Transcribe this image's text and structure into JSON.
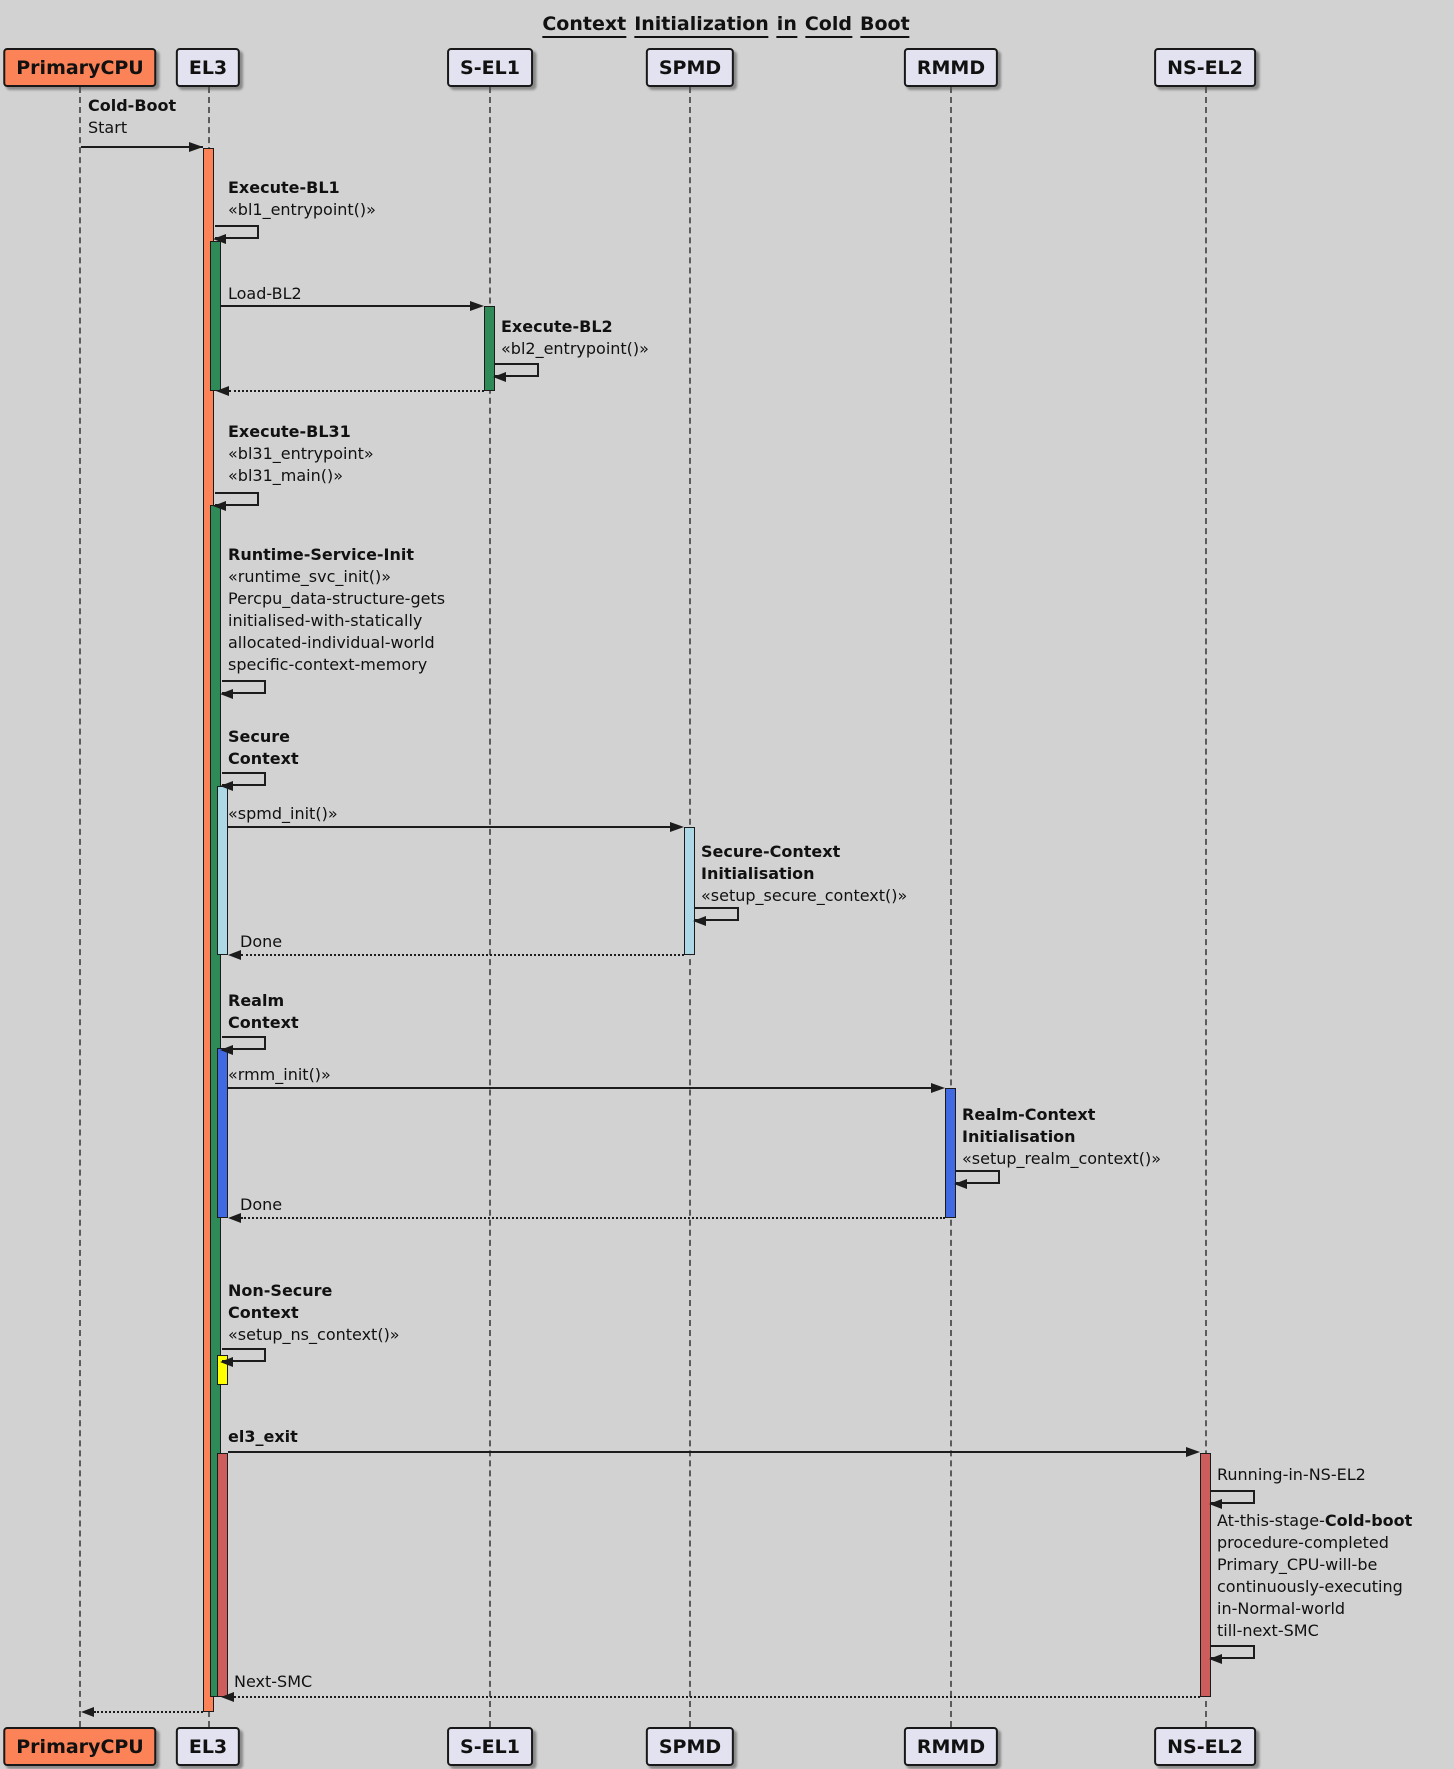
{
  "title": "Context Initialization in Cold Boot",
  "participants": [
    {
      "label": "PrimaryCPU"
    },
    {
      "label": "EL3"
    },
    {
      "label": "S-EL1"
    },
    {
      "label": "SPMD"
    },
    {
      "label": "RMMD"
    },
    {
      "label": "NS-EL2"
    }
  ],
  "messages": {
    "cold_boot": {
      "name": "Cold-Boot",
      "detail": "Start"
    },
    "execute_bl1": {
      "name": "Execute-BL1",
      "stereotype": "«bl1_entrypoint()»"
    },
    "load_bl2": {
      "name": "Load-BL2"
    },
    "execute_bl2": {
      "name": "Execute-BL2",
      "stereotype": "«bl2_entrypoint()»"
    },
    "execute_bl31": {
      "name": "Execute-BL31",
      "stereotype1": "«bl31_entrypoint»",
      "stereotype2": "«bl31_main()»"
    },
    "runtime_service_init": {
      "name": "Runtime-Service-Init",
      "stereotype": "«runtime_svc_init()»",
      "description": [
        "Percpu_data-structure-gets",
        "initialised-with-statically",
        "allocated-individual-world",
        "specific-context-memory"
      ]
    },
    "secure_context": {
      "name1": "Secure",
      "name2": "Context"
    },
    "spmd_init": {
      "name": "«spmd_init()»"
    },
    "secure_context_init": {
      "name1": "Secure-Context",
      "name2": "Initialisation",
      "stereotype": "«setup_secure_context()»"
    },
    "done_secure": {
      "name": "Done"
    },
    "realm_context": {
      "name1": "Realm",
      "name2": "Context"
    },
    "rmm_init": {
      "name": "«rmm_init()»"
    },
    "realm_context_init": {
      "name1": "Realm-Context",
      "name2": "Initialisation",
      "stereotype": "«setup_realm_context()»"
    },
    "done_realm": {
      "name": "Done"
    },
    "non_secure_context": {
      "name1": "Non-Secure",
      "name2": "Context",
      "stereotype": "«setup_ns_context()»"
    },
    "el3_exit": {
      "name": "el3_exit"
    },
    "running_in_ns_el2": {
      "name": "Running-in-NS-EL2"
    },
    "cold_boot_complete_note": {
      "prefix": "At-this-stage-",
      "bold": "Cold-boot",
      "lines": [
        "procedure-completed",
        "Primary_CPU-will-be",
        "continuously-executing",
        "in-Normal-world",
        "till-next-SMC"
      ]
    },
    "next_smc": {
      "name": "Next-SMC"
    }
  },
  "colors": {
    "background": "#d2d2d2",
    "participant_fill": "#e2e2f0",
    "primary_cpu_fill": "#fb8357",
    "activation_orange": "#fb8357",
    "activation_green": "#2e8b57",
    "activation_lightblue": "#add8e6",
    "activation_blue": "#4169e1",
    "activation_yellow": "#ffff00",
    "activation_red": "#cd5c5c"
  }
}
